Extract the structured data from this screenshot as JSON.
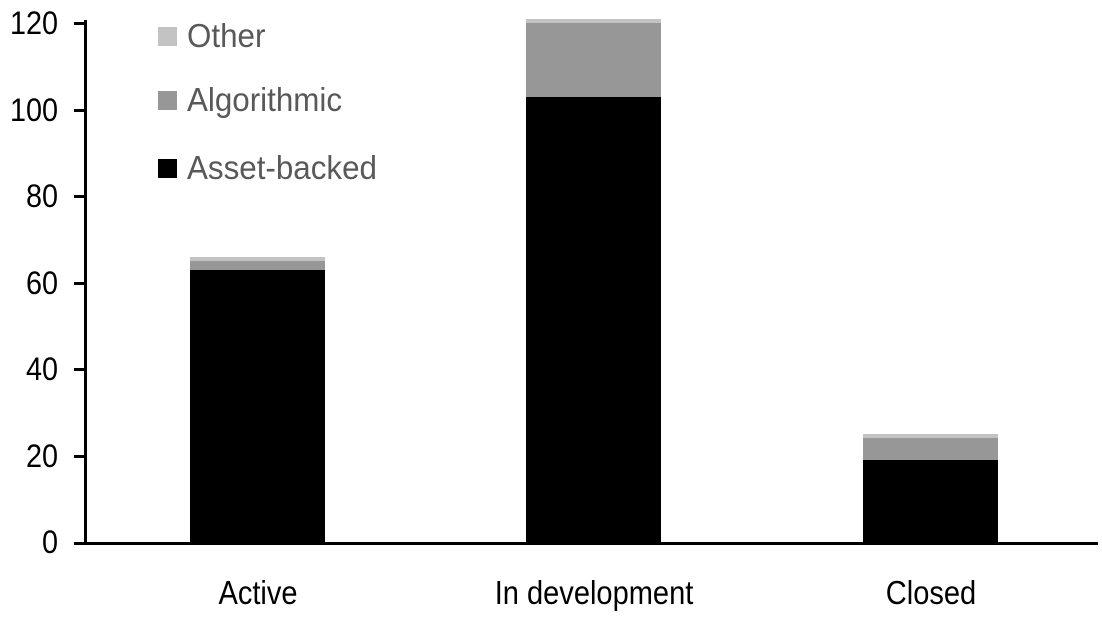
{
  "chart_data": {
    "type": "bar",
    "stacked": true,
    "title": "",
    "xlabel": "",
    "ylabel": "",
    "categories": [
      "Active",
      "In development",
      "Closed"
    ],
    "series": [
      {
        "name": "Asset-backed",
        "color": "#000000",
        "values": [
          63,
          103,
          19
        ]
      },
      {
        "name": "Algorithmic",
        "color": "#979797",
        "values": [
          2,
          17,
          5
        ]
      },
      {
        "name": "Other",
        "color": "#c3c3c3",
        "values": [
          1,
          1,
          1
        ]
      }
    ],
    "stack_order_bottom_to_top": [
      "Asset-backed",
      "Algorithmic",
      "Other"
    ],
    "ylim": [
      0,
      120
    ],
    "yticks": [
      "0",
      "20",
      "40",
      "60",
      "80",
      "100",
      "120"
    ],
    "grid": false,
    "legend": {
      "position": "top-left",
      "items": [
        {
          "label": "Other",
          "color": "#c3c3c3"
        },
        {
          "label": "Algorithmic",
          "color": "#979797"
        },
        {
          "label": "Asset-backed",
          "color": "#000000"
        }
      ]
    },
    "axis_color": "#000000",
    "tick_label_color": "#000000",
    "legend_text_color": "#595959",
    "background_color": "#ffffff"
  }
}
